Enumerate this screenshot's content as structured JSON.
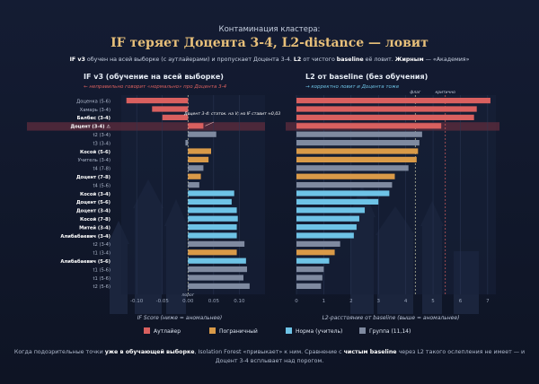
{
  "header": {
    "kicker": "Контаминация кластера:",
    "title": "IF теряет Доцента 3-4, L2-distance — ловит",
    "subtitle": {
      "p1": "IF v3",
      "p2": " обучен на всей выборке (с аутлайерами) и пропускает Доцента 3-4. ",
      "p3": "L2",
      "p4": " от чистого ",
      "p5": "baseline",
      "p6": " её ловит. ",
      "p7": "Жирным",
      "p8": " — «Академия»"
    }
  },
  "colors": {
    "background": "#0f1629",
    "panel": "#18223a",
    "outlier": "#d9605f",
    "borderline": "#d99a48",
    "normal": "#6ec3e6",
    "group": "#7f8aa0",
    "highlight_row": "#5a2a3c",
    "threshold": "#c9c9a8"
  },
  "chart_data": [
    {
      "type": "bar",
      "title": "IF v3 (обучение на всей выборке)",
      "subtitle": "← неправильно говорит «нормально» про Доцента 3-4",
      "xlabel": "IF Score (ниже = аномальнее)",
      "xlim": [
        -0.13,
        0.15
      ],
      "xticks": [
        "-0.10",
        "-0.05",
        "0.00",
        "0.05",
        "0.10"
      ],
      "xtick_values": [
        -0.1,
        -0.05,
        0.0,
        0.05,
        0.1
      ],
      "threshold": 0.0,
      "threshold_label": "порог",
      "annotation": {
        "text": "Доцент 3-4: статок. на V; но IF ставит ≈0,03",
        "points_to": "Доцент (3-4) ⚠"
      },
      "categories": [
        "Доценка (5-6)",
        "Хамарь (3-4)",
        "Балбес (3-4)",
        "Доцент (3-4) ⚠",
        "t2 (3-4)",
        "t3 (3-4)",
        "Косой (5-6)",
        "Учитель (3-4)",
        "t4 (7-8)",
        "Доцент (7-8)",
        "t4 (5-6)",
        "Косой (3-4)",
        "Доцент (5-6)",
        "Доцент (3-4)",
        "Косой (7-8)",
        "Митей (3-4)",
        "Алибабаевич (3-4)",
        "t2 (3-4)",
        "t1 (3-4)",
        "Алибабаевич (5-6)",
        "t1 (5-6)",
        "t1 (5-6)",
        "t2 (5-6)"
      ],
      "bold": [
        false,
        false,
        true,
        true,
        false,
        false,
        true,
        false,
        false,
        true,
        false,
        true,
        true,
        true,
        true,
        true,
        true,
        false,
        false,
        true,
        false,
        false,
        false
      ],
      "classes": [
        "outlier",
        "outlier",
        "outlier",
        "outlier",
        "group",
        "group",
        "borderline",
        "borderline",
        "group",
        "borderline",
        "group",
        "normal",
        "normal",
        "normal",
        "normal",
        "normal",
        "normal",
        "group",
        "borderline",
        "normal",
        "group",
        "group",
        "group"
      ],
      "values": [
        -0.12,
        -0.07,
        -0.05,
        0.03,
        0.055,
        -0.005,
        0.045,
        0.04,
        0.03,
        0.025,
        0.022,
        0.09,
        0.085,
        0.095,
        0.097,
        0.095,
        0.095,
        0.11,
        0.095,
        0.113,
        0.115,
        0.108,
        0.12
      ]
    },
    {
      "type": "bar",
      "title": "L2 от baseline (без обучения)",
      "subtitle": "→ корректно ловит и Доцента тоже",
      "xlabel": "L2-расстояние от baseline (выше = аномальнее)",
      "xlim": [
        0,
        7.3
      ],
      "xticks": [
        "0",
        "1",
        "2",
        "3",
        "4",
        "5",
        "6",
        "7"
      ],
      "xtick_values": [
        0,
        1,
        2,
        3,
        4,
        5,
        6,
        7
      ],
      "thresholds": [
        4.35,
        5.45
      ],
      "threshold_labels": [
        "флаг",
        "критично"
      ],
      "values": [
        7.1,
        6.6,
        6.5,
        5.3,
        4.6,
        4.5,
        4.45,
        4.4,
        4.1,
        3.6,
        3.5,
        3.4,
        3.0,
        2.5,
        2.3,
        2.2,
        2.1,
        1.6,
        1.4,
        1.2,
        1.0,
        0.95,
        0.9
      ]
    }
  ],
  "legend": {
    "outlier": "Аутлайер",
    "borderline": "Пограничный",
    "normal": "Норма (учитель)",
    "group": "Группа (11,14)"
  },
  "footer": {
    "p1": "Когда подозрительные точки ",
    "p2": "уже в обучающей выборке",
    "p3": ", Isolation Forest «привыкает» к ним. Сравнение с ",
    "p4": "чистым baseline",
    "p5": " через L2 такого ослепления не имеет — и",
    "line2": "Доцент 3-4 всплывает над порогом."
  }
}
